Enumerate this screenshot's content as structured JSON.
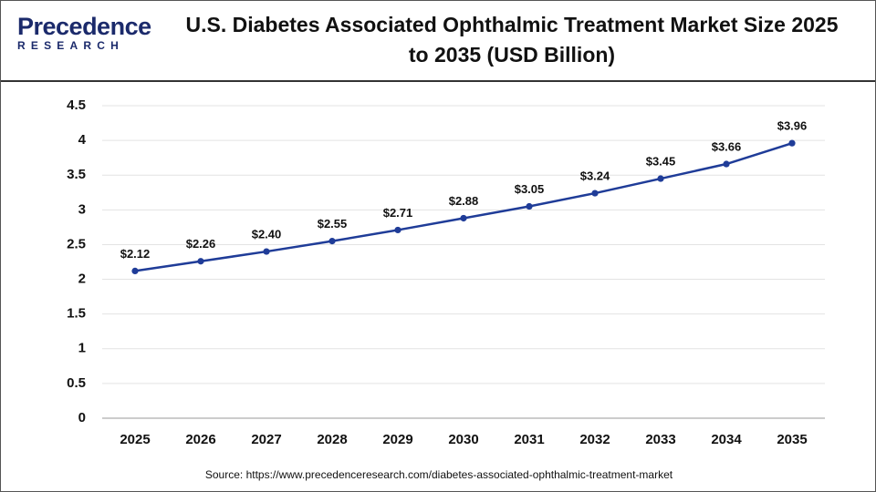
{
  "logo": {
    "name": "Precedence",
    "tagline": "RESEARCH"
  },
  "chart_data": {
    "type": "line",
    "title": "U.S. Diabetes Associated Ophthalmic Treatment Market Size 2025 to 2035 (USD Billion)",
    "categories": [
      "2025",
      "2026",
      "2027",
      "2028",
      "2029",
      "2030",
      "2031",
      "2032",
      "2033",
      "2034",
      "2035"
    ],
    "values": [
      2.12,
      2.26,
      2.4,
      2.55,
      2.71,
      2.88,
      3.05,
      3.24,
      3.45,
      3.66,
      3.96
    ],
    "value_labels": [
      "$2.12",
      "$2.26",
      "$2.40",
      "$2.55",
      "$2.71",
      "$2.88",
      "$3.05",
      "$3.24",
      "$3.45",
      "$3.66",
      "$3.96"
    ],
    "color": "#1f3c98",
    "ylim": [
      0,
      4.5
    ],
    "yticks": [
      0,
      0.5,
      1,
      1.5,
      2,
      2.5,
      3,
      3.5,
      4,
      4.5
    ],
    "grid": true,
    "source": "Source: https://www.precedenceresearch.com/diabetes-associated-ophthalmic-treatment-market"
  }
}
